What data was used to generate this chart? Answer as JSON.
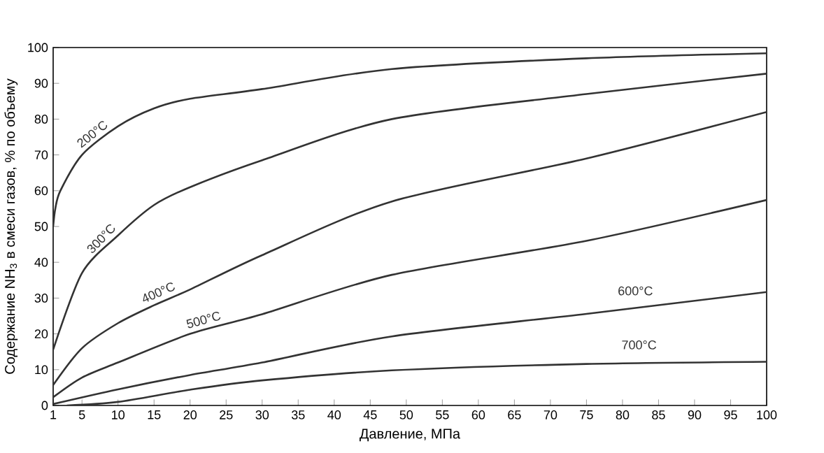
{
  "chart_data": {
    "type": "line",
    "xlabel": "Давление, МПа",
    "ylabel": "Содержание NH$_{3}$ в смеси газов, % по объему",
    "xlim": [
      1,
      100
    ],
    "ylim": [
      0,
      100
    ],
    "xticks": [
      1,
      5,
      10,
      15,
      20,
      25,
      30,
      35,
      40,
      45,
      50,
      55,
      60,
      65,
      70,
      75,
      80,
      85,
      90,
      95,
      100
    ],
    "yticks": [
      0,
      10,
      20,
      30,
      40,
      50,
      60,
      70,
      80,
      90,
      100
    ],
    "grid": false,
    "legend": false,
    "marker": "none",
    "line_style": "solid",
    "series": [
      {
        "name": "200°C",
        "color": "#333333",
        "x": [
          1,
          1.3,
          2,
          5,
          10,
          15,
          20,
          30,
          48,
          75,
          100
        ],
        "values": [
          50,
          55,
          60,
          70,
          78,
          83,
          85.7,
          88.4,
          94,
          97,
          98.4
        ]
      },
      {
        "name": "300°C",
        "color": "#333333",
        "x": [
          1,
          5,
          10,
          15,
          20,
          30,
          48,
          75,
          100
        ],
        "values": [
          15.6,
          37,
          47.5,
          56,
          61,
          68.5,
          80,
          87,
          92.7
        ]
      },
      {
        "name": "400°C",
        "color": "#333333",
        "x": [
          1,
          5,
          10,
          15,
          20,
          30,
          48,
          75,
          100
        ],
        "values": [
          5.7,
          16,
          23,
          28,
          32.4,
          42,
          57,
          69,
          82
        ]
      },
      {
        "name": "500°C",
        "color": "#333333",
        "x": [
          1,
          5,
          10,
          20,
          30,
          48,
          75,
          100
        ],
        "values": [
          2.3,
          7.8,
          12,
          20,
          25.5,
          36.5,
          46,
          57.4
        ]
      },
      {
        "name": "600°C",
        "color": "#333333",
        "x": [
          1,
          10,
          20,
          30,
          48,
          75,
          100
        ],
        "values": [
          0.4,
          4.5,
          8.5,
          12,
          19.3,
          25.6,
          31.7
        ]
      },
      {
        "name": "700°C",
        "color": "#333333",
        "x": [
          2.9,
          10,
          20,
          30,
          48,
          75,
          100
        ],
        "values": [
          0,
          1,
          4.4,
          7,
          9.8,
          11.6,
          12.2
        ]
      }
    ]
  }
}
